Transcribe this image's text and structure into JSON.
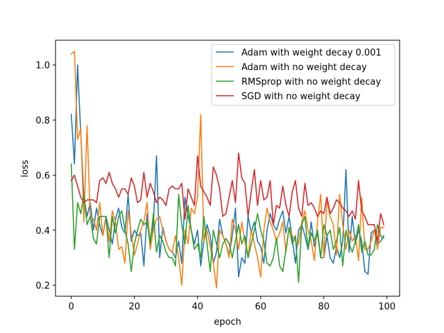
{
  "chart_data": {
    "type": "line",
    "title": "",
    "xlabel": "epoch",
    "ylabel": "loss",
    "xlim": [
      -5,
      104
    ],
    "ylim": [
      0.16,
      1.09
    ],
    "xticks": [
      0,
      20,
      40,
      60,
      80,
      100
    ],
    "yticks": [
      0.2,
      0.4,
      0.6,
      0.8,
      1.0
    ],
    "xtick_labels": [
      "0",
      "20",
      "40",
      "60",
      "80",
      "100"
    ],
    "ytick_labels": [
      "0.2",
      "0.4",
      "0.6",
      "0.8",
      "1.0"
    ],
    "grid": false,
    "legend_position": "top-right",
    "x": [
      0,
      1,
      2,
      3,
      4,
      5,
      6,
      7,
      8,
      9,
      10,
      11,
      12,
      13,
      14,
      15,
      16,
      17,
      18,
      19,
      20,
      21,
      22,
      23,
      24,
      25,
      26,
      27,
      28,
      29,
      30,
      31,
      32,
      33,
      34,
      35,
      36,
      37,
      38,
      39,
      40,
      41,
      42,
      43,
      44,
      45,
      46,
      47,
      48,
      49,
      50,
      51,
      52,
      53,
      54,
      55,
      56,
      57,
      58,
      59,
      60,
      61,
      62,
      63,
      64,
      65,
      66,
      67,
      68,
      69,
      70,
      71,
      72,
      73,
      74,
      75,
      76,
      77,
      78,
      79,
      80,
      81,
      82,
      83,
      84,
      85,
      86,
      87,
      88,
      89,
      90,
      91,
      92,
      93,
      94,
      95,
      96,
      97,
      98,
      99
    ],
    "series": [
      {
        "name": "Adam with weight decay 0.001",
        "color": "#1f77b4",
        "values": [
          0.82,
          0.64,
          1.0,
          0.75,
          0.52,
          0.45,
          0.5,
          0.4,
          0.48,
          0.42,
          0.38,
          0.45,
          0.4,
          0.35,
          0.44,
          0.48,
          0.41,
          0.39,
          0.53,
          0.36,
          0.4,
          0.38,
          0.39,
          0.27,
          0.46,
          0.36,
          0.42,
          0.67,
          0.3,
          0.41,
          0.36,
          0.33,
          0.32,
          0.3,
          0.36,
          0.28,
          0.52,
          0.45,
          0.4,
          0.35,
          0.4,
          0.27,
          0.36,
          0.42,
          0.38,
          0.28,
          0.32,
          0.44,
          0.38,
          0.35,
          0.31,
          0.38,
          0.48,
          0.23,
          0.3,
          0.28,
          0.45,
          0.39,
          0.43,
          0.36,
          0.34,
          0.28,
          0.4,
          0.46,
          0.42,
          0.4,
          0.44,
          0.47,
          0.39,
          0.45,
          0.37,
          0.28,
          0.4,
          0.42,
          0.38,
          0.33,
          0.43,
          0.34,
          0.39,
          0.3,
          0.3,
          0.38,
          0.3,
          0.28,
          0.34,
          0.3,
          0.36,
          0.62,
          0.32,
          0.45,
          0.35,
          0.4,
          0.36,
          0.25,
          0.24,
          0.39,
          0.4,
          0.35,
          0.36,
          0.38
        ]
      },
      {
        "name": "Adam with no weight decay",
        "color": "#ff7f0e",
        "values": [
          1.04,
          1.05,
          0.73,
          0.77,
          0.43,
          0.78,
          0.45,
          0.44,
          0.4,
          0.5,
          0.38,
          0.44,
          0.36,
          0.47,
          0.43,
          0.33,
          0.34,
          0.28,
          0.47,
          0.39,
          0.31,
          0.35,
          0.4,
          0.43,
          0.5,
          0.33,
          0.4,
          0.44,
          0.45,
          0.4,
          0.36,
          0.33,
          0.32,
          0.38,
          0.3,
          0.2,
          0.4,
          0.35,
          0.48,
          0.46,
          0.52,
          0.82,
          0.36,
          0.4,
          0.34,
          0.28,
          0.19,
          0.4,
          0.38,
          0.35,
          0.3,
          0.44,
          0.4,
          0.33,
          0.43,
          0.36,
          0.3,
          0.4,
          0.35,
          0.3,
          0.23,
          0.4,
          0.48,
          0.43,
          0.4,
          0.36,
          0.39,
          0.43,
          0.32,
          0.41,
          0.38,
          0.36,
          0.35,
          0.43,
          0.47,
          0.4,
          0.36,
          0.29,
          0.43,
          0.53,
          0.3,
          0.51,
          0.45,
          0.42,
          0.31,
          0.53,
          0.42,
          0.33,
          0.4,
          0.36,
          0.38,
          0.29,
          0.52,
          0.33,
          0.33,
          0.36,
          0.4,
          0.33,
          0.41,
          0.41
        ]
      },
      {
        "name": "RMSprop with no weight decay",
        "color": "#2ca02c",
        "values": [
          0.64,
          0.33,
          0.5,
          0.46,
          0.53,
          0.42,
          0.45,
          0.37,
          0.35,
          0.45,
          0.45,
          0.45,
          0.3,
          0.45,
          0.39,
          0.45,
          0.47,
          0.4,
          0.35,
          0.25,
          0.35,
          0.4,
          0.44,
          0.42,
          0.43,
          0.35,
          0.46,
          0.32,
          0.38,
          0.36,
          0.32,
          0.3,
          0.3,
          0.27,
          0.53,
          0.42,
          0.35,
          0.49,
          0.4,
          0.33,
          0.35,
          0.3,
          0.45,
          0.35,
          0.25,
          0.4,
          0.35,
          0.3,
          0.35,
          0.37,
          0.35,
          0.3,
          0.36,
          0.42,
          0.35,
          0.38,
          0.3,
          0.35,
          0.4,
          0.46,
          0.4,
          0.36,
          0.28,
          0.27,
          0.3,
          0.37,
          0.27,
          0.25,
          0.33,
          0.41,
          0.35,
          0.38,
          0.21,
          0.42,
          0.45,
          0.33,
          0.39,
          0.36,
          0.4,
          0.3,
          0.42,
          0.38,
          0.4,
          0.33,
          0.36,
          0.41,
          0.27,
          0.4,
          0.35,
          0.32,
          0.36,
          0.42,
          0.32,
          0.36,
          0.31,
          0.31,
          0.33,
          0.42,
          0.38,
          0.37
        ]
      },
      {
        "name": "SGD with no weight decay",
        "color": "#d62728",
        "values": [
          0.58,
          0.6,
          0.56,
          0.52,
          0.5,
          0.51,
          0.51,
          0.51,
          0.5,
          0.58,
          0.59,
          0.57,
          0.61,
          0.57,
          0.55,
          0.52,
          0.55,
          0.55,
          0.53,
          0.59,
          0.56,
          0.5,
          0.51,
          0.61,
          0.52,
          0.57,
          0.54,
          0.5,
          0.52,
          0.51,
          0.49,
          0.55,
          0.56,
          0.55,
          0.55,
          0.57,
          0.44,
          0.55,
          0.52,
          0.49,
          0.67,
          0.56,
          0.54,
          0.52,
          0.49,
          0.63,
          0.6,
          0.55,
          0.45,
          0.46,
          0.52,
          0.58,
          0.5,
          0.68,
          0.59,
          0.57,
          0.45,
          0.54,
          0.62,
          0.49,
          0.58,
          0.51,
          0.52,
          0.58,
          0.42,
          0.49,
          0.48,
          0.56,
          0.49,
          0.45,
          0.54,
          0.58,
          0.48,
          0.45,
          0.57,
          0.49,
          0.5,
          0.48,
          0.45,
          0.47,
          0.46,
          0.52,
          0.46,
          0.48,
          0.51,
          0.5,
          0.48,
          0.47,
          0.45,
          0.47,
          0.44,
          0.58,
          0.47,
          0.45,
          0.42,
          0.42,
          0.42,
          0.36,
          0.46,
          0.42
        ]
      }
    ]
  }
}
